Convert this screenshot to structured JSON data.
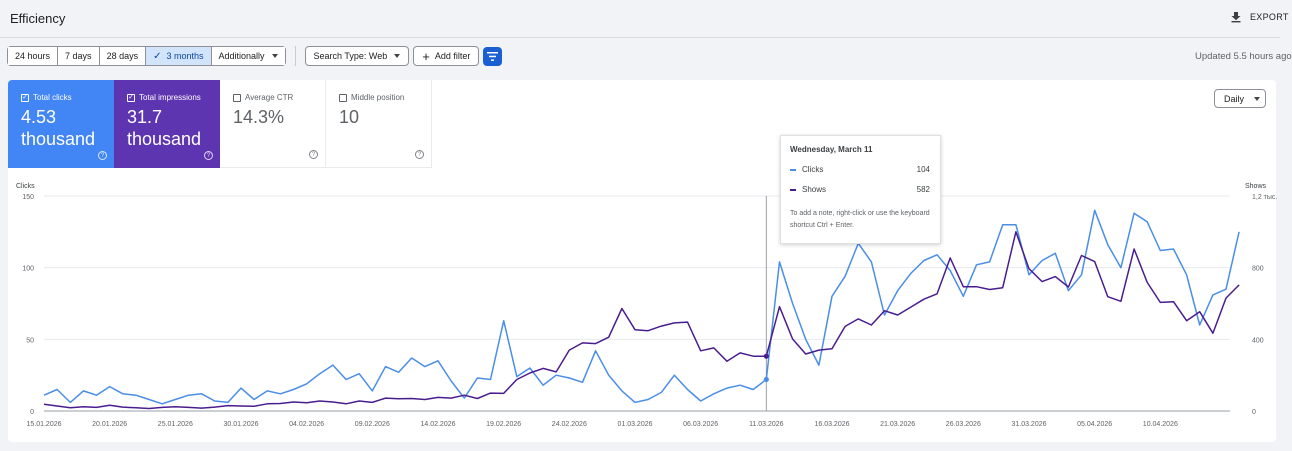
{
  "header": {
    "title": "Efficiency",
    "export_label": "EXPORT"
  },
  "filters": {
    "ranges": [
      {
        "label": "24 hours",
        "active": false
      },
      {
        "label": "7 days",
        "active": false
      },
      {
        "label": "28 days",
        "active": false
      },
      {
        "label": "3 months",
        "active": true
      },
      {
        "label": "Additionally",
        "active": false
      }
    ],
    "search_type": "Search Type: Web",
    "add_filter": "Add filter",
    "updated": "Updated 5.5 hours ago"
  },
  "metrics": {
    "clicks": {
      "label": "Total clicks",
      "value": "4.53 thousand",
      "checked": true
    },
    "impressions": {
      "label": "Total impressions",
      "value": "31.7 thousand",
      "checked": true
    },
    "ctr": {
      "label": "Average CTR",
      "value": "14.3%",
      "checked": false
    },
    "position": {
      "label": "Middle position",
      "value": "10",
      "checked": false
    }
  },
  "granularity": "Daily",
  "tooltip": {
    "date": "Wednesday, March 11",
    "rows": [
      {
        "label": "Clicks",
        "value": "104"
      },
      {
        "label": "Shows",
        "value": "582"
      }
    ],
    "note": "To add a note, right-click or use the keyboard shortcut Ctrl + Enter."
  },
  "colors": {
    "clicks": "#4a8ee8",
    "impressions": "#4a1d8f",
    "accent": "#1a5fd1"
  },
  "chart_data": {
    "type": "line",
    "ylabel_left": "Clicks",
    "ylabel_right": "Shows",
    "y_left_ticks": [
      "0",
      "50",
      "100",
      "150"
    ],
    "y_left_lim": [
      0,
      150
    ],
    "y_right_ticks": [
      "0",
      "400",
      "800",
      "1,2 тыс."
    ],
    "y_right_lim": [
      0,
      1200
    ],
    "x_ticks": [
      "15.01.2026",
      "20.01.2026",
      "25.01.2026",
      "30.01.2026",
      "04.02.2026",
      "09.02.2026",
      "14.02.2026",
      "19.02.2026",
      "24.02.2026",
      "01.03.2026",
      "06.03.2026",
      "11.03.2026",
      "16.03.2026",
      "21.03.2026",
      "26.03.2026",
      "31.03.2026",
      "05.04.2026",
      "10.04.2026"
    ],
    "start": "15.01.2026",
    "end": "15.04.2026",
    "highlight": "11.03.2026",
    "series": [
      {
        "name": "Clicks",
        "axis": "left",
        "values": [
          11,
          15,
          6,
          14,
          11,
          17,
          12,
          11,
          8,
          5,
          8,
          11,
          12,
          7,
          6,
          16,
          8,
          14,
          12,
          15,
          19,
          26,
          32,
          22,
          26,
          14,
          31,
          27,
          37,
          31,
          35,
          21,
          9,
          23,
          22,
          63,
          24,
          30,
          18,
          25,
          23,
          20,
          42,
          25,
          14,
          6,
          8,
          13,
          25,
          15,
          7,
          12,
          16,
          18,
          15,
          22,
          104,
          75,
          50,
          32,
          80,
          94,
          117,
          104,
          67,
          84,
          96,
          105,
          109,
          98,
          80,
          102,
          104,
          130,
          130,
          95,
          105,
          110,
          84,
          95,
          140,
          116,
          100,
          138,
          132,
          112,
          113,
          95,
          60,
          81,
          85,
          125
        ]
      },
      {
        "name": "Shows",
        "axis": "right",
        "values": [
          38,
          28,
          18,
          24,
          20,
          32,
          22,
          18,
          14,
          20,
          24,
          20,
          16,
          22,
          30,
          28,
          26,
          40,
          42,
          50,
          46,
          56,
          50,
          40,
          56,
          48,
          72,
          68,
          70,
          64,
          76,
          72,
          88,
          70,
          100,
          98,
          176,
          212,
          238,
          218,
          340,
          380,
          376,
          412,
          572,
          454,
          448,
          474,
          492,
          496,
          336,
          352,
          278,
          324,
          306,
          306,
          582,
          402,
          318,
          340,
          348,
          472,
          514,
          480,
          560,
          536,
          580,
          624,
          654,
          854,
          694,
          694,
          678,
          688,
          1000,
          794,
          722,
          750,
          692,
          868,
          834,
          638,
          612,
          904,
          718,
          606,
          610,
          504,
          554,
          434,
          630,
          704
        ]
      }
    ]
  }
}
